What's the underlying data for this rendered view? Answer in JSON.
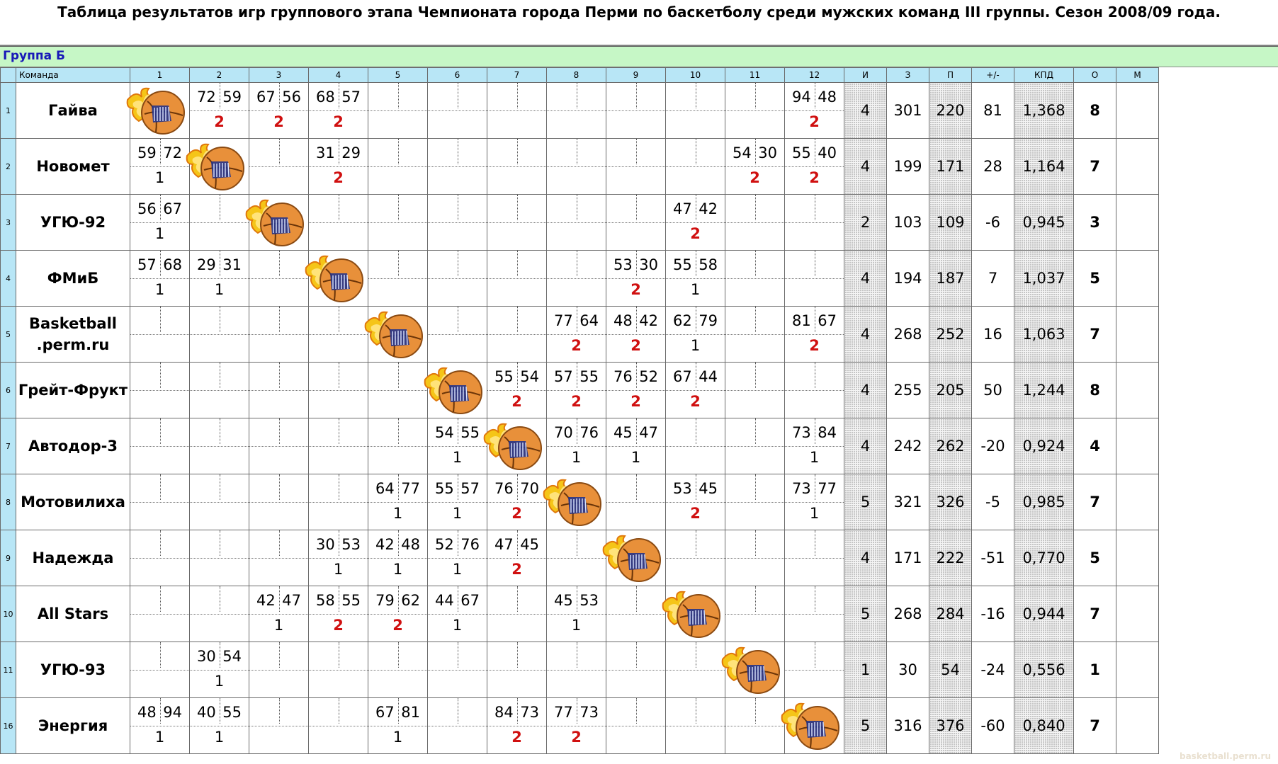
{
  "title": "Таблица результатов игр группового этапа Чемпионата города Перми по баскетболу среди мужских команд III группы. Сезон 2008/09 года.",
  "group_label": "Группа Б",
  "header": {
    "team": "Команда",
    "cols": [
      "1",
      "2",
      "3",
      "4",
      "5",
      "6",
      "7",
      "8",
      "9",
      "10",
      "11",
      "12"
    ],
    "games": "И",
    "scored": "З",
    "conceded": "П",
    "diff": "+/-",
    "kpd": "КПД",
    "points": "О",
    "place": "М"
  },
  "watermark": "basketball.perm.ru",
  "icons": {
    "diagonal": "basketball-flame-icon"
  },
  "colors": {
    "header_bg": "#b8e6f6",
    "group_bg": "#c6f7c6",
    "win": "#d01010",
    "group_text": "#1818b8"
  },
  "rows": [
    {
      "num": "1",
      "name": [
        "Гайва"
      ],
      "cells": {
        "2": [
          "72",
          "59",
          "2"
        ],
        "3": [
          "67",
          "56",
          "2"
        ],
        "4": [
          "68",
          "57",
          "2"
        ],
        "12": [
          "94",
          "48",
          "2"
        ]
      },
      "stats": [
        "4",
        "301",
        "220",
        "81",
        "1,368",
        "8",
        ""
      ]
    },
    {
      "num": "2",
      "name": [
        "Новомет"
      ],
      "cells": {
        "1": [
          "59",
          "72",
          "1"
        ],
        "4": [
          "31",
          "29",
          "2"
        ],
        "11": [
          "54",
          "30",
          "2"
        ],
        "12": [
          "55",
          "40",
          "2"
        ]
      },
      "stats": [
        "4",
        "199",
        "171",
        "28",
        "1,164",
        "7",
        ""
      ]
    },
    {
      "num": "3",
      "name": [
        "УГЮ-92"
      ],
      "cells": {
        "1": [
          "56",
          "67",
          "1"
        ],
        "10": [
          "47",
          "42",
          "2"
        ]
      },
      "stats": [
        "2",
        "103",
        "109",
        "-6",
        "0,945",
        "3",
        ""
      ]
    },
    {
      "num": "4",
      "name": [
        "ФМиБ"
      ],
      "cells": {
        "1": [
          "57",
          "68",
          "1"
        ],
        "2": [
          "29",
          "31",
          "1"
        ],
        "9": [
          "53",
          "30",
          "2"
        ],
        "10": [
          "55",
          "58",
          "1"
        ]
      },
      "stats": [
        "4",
        "194",
        "187",
        "7",
        "1,037",
        "5",
        ""
      ]
    },
    {
      "num": "5",
      "name": [
        "Basketball",
        ".perm.ru"
      ],
      "cells": {
        "8": [
          "77",
          "64",
          "2"
        ],
        "9": [
          "48",
          "42",
          "2"
        ],
        "10": [
          "62",
          "79",
          "1"
        ],
        "12": [
          "81",
          "67",
          "2"
        ]
      },
      "stats": [
        "4",
        "268",
        "252",
        "16",
        "1,063",
        "7",
        ""
      ]
    },
    {
      "num": "6",
      "name": [
        "Грейт-Фрукт"
      ],
      "cells": {
        "7": [
          "55",
          "54",
          "2"
        ],
        "8": [
          "57",
          "55",
          "2"
        ],
        "9": [
          "76",
          "52",
          "2"
        ],
        "10": [
          "67",
          "44",
          "2"
        ]
      },
      "stats": [
        "4",
        "255",
        "205",
        "50",
        "1,244",
        "8",
        ""
      ]
    },
    {
      "num": "7",
      "name": [
        "Автодор-3"
      ],
      "cells": {
        "6": [
          "54",
          "55",
          "1"
        ],
        "8": [
          "70",
          "76",
          "1"
        ],
        "9": [
          "45",
          "47",
          "1"
        ],
        "12": [
          "73",
          "84",
          "1"
        ]
      },
      "stats": [
        "4",
        "242",
        "262",
        "-20",
        "0,924",
        "4",
        ""
      ]
    },
    {
      "num": "8",
      "name": [
        "Мотовилиха"
      ],
      "cells": {
        "5": [
          "64",
          "77",
          "1"
        ],
        "6": [
          "55",
          "57",
          "1"
        ],
        "7": [
          "76",
          "70",
          "2"
        ],
        "10": [
          "53",
          "45",
          "2"
        ],
        "12": [
          "73",
          "77",
          "1"
        ]
      },
      "stats": [
        "5",
        "321",
        "326",
        "-5",
        "0,985",
        "7",
        ""
      ]
    },
    {
      "num": "9",
      "name": [
        "Надежда"
      ],
      "cells": {
        "4": [
          "30",
          "53",
          "1"
        ],
        "5": [
          "42",
          "48",
          "1"
        ],
        "6": [
          "52",
          "76",
          "1"
        ],
        "7": [
          "47",
          "45",
          "2"
        ]
      },
      "stats": [
        "4",
        "171",
        "222",
        "-51",
        "0,770",
        "5",
        ""
      ]
    },
    {
      "num": "10",
      "name": [
        "All Stars"
      ],
      "cells": {
        "3": [
          "42",
          "47",
          "1"
        ],
        "4": [
          "58",
          "55",
          "2"
        ],
        "5": [
          "79",
          "62",
          "2"
        ],
        "6": [
          "44",
          "67",
          "1"
        ],
        "8": [
          "45",
          "53",
          "1"
        ]
      },
      "stats": [
        "5",
        "268",
        "284",
        "-16",
        "0,944",
        "7",
        ""
      ]
    },
    {
      "num": "11",
      "name": [
        "УГЮ-93"
      ],
      "cells": {
        "2": [
          "30",
          "54",
          "1"
        ]
      },
      "stats": [
        "1",
        "30",
        "54",
        "-24",
        "0,556",
        "1",
        ""
      ]
    },
    {
      "num": "16",
      "name": [
        "Энергия"
      ],
      "cells": {
        "1": [
          "48",
          "94",
          "1"
        ],
        "2": [
          "40",
          "55",
          "1"
        ],
        "5": [
          "67",
          "81",
          "1"
        ],
        "7": [
          "84",
          "73",
          "2"
        ],
        "8": [
          "77",
          "73",
          "2"
        ]
      },
      "stats": [
        "5",
        "316",
        "376",
        "-60",
        "0,840",
        "7",
        ""
      ]
    }
  ]
}
